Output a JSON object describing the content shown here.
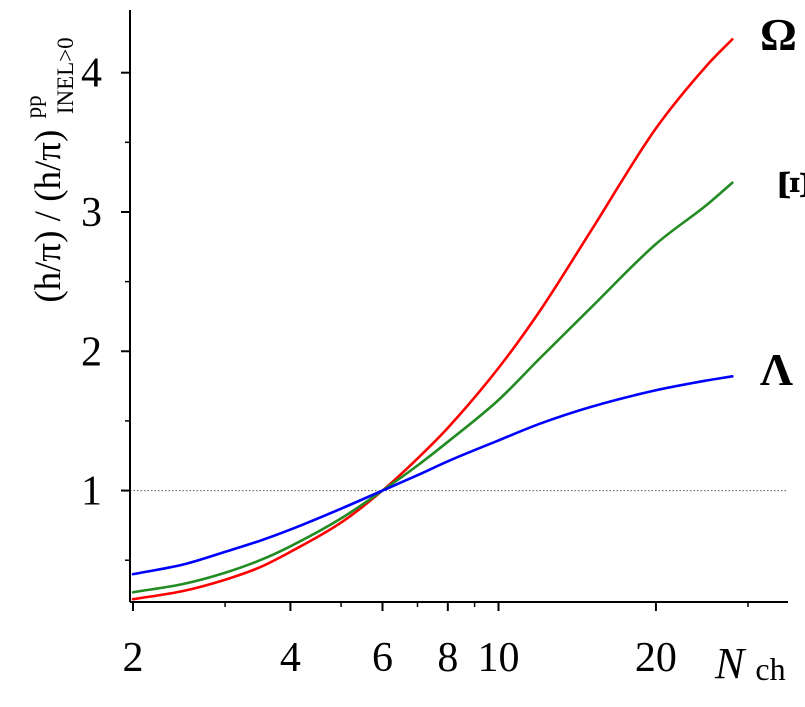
{
  "chart_data": {
    "type": "line",
    "x_scale": "log",
    "xlim": [
      2,
      30
    ],
    "ylim": [
      0.2,
      4.45
    ],
    "x_ticks": [
      {
        "value": 2,
        "label": "2"
      },
      {
        "value": 4,
        "label": "4"
      },
      {
        "value": 6,
        "label": "6"
      },
      {
        "value": 8,
        "label": "8"
      },
      {
        "value": 10,
        "label": "10"
      },
      {
        "value": 20,
        "label": "20"
      }
    ],
    "x_minor_ticks": [
      3,
      5,
      7,
      9,
      30
    ],
    "y_ticks": [
      {
        "value": 1,
        "label": "1"
      },
      {
        "value": 2,
        "label": "2"
      },
      {
        "value": 3,
        "label": "3"
      },
      {
        "value": 4,
        "label": "4"
      }
    ],
    "y_minor_ticks": [
      0.5,
      1.5,
      2.5,
      3.5
    ],
    "xlabel": {
      "main": "N",
      "sub": "ch"
    },
    "ylabel": {
      "main": "(h/π) / (h/π)",
      "sup": "pp",
      "sub": "INEL>0"
    },
    "reference_line": {
      "y": 1,
      "style": "dotted",
      "color": "#555555"
    },
    "grid": false,
    "legend": "none",
    "series": [
      {
        "name": "Ω",
        "color": "#ff0000",
        "x": [
          2,
          2.5,
          3,
          3.5,
          4,
          5,
          6,
          7,
          8,
          10,
          12,
          15,
          20,
          25,
          28
        ],
        "y": [
          0.22,
          0.28,
          0.36,
          0.45,
          0.56,
          0.77,
          1.0,
          1.23,
          1.45,
          1.88,
          2.29,
          2.86,
          3.6,
          4.05,
          4.24
        ]
      },
      {
        "name": "Ξ",
        "color": "#228b22",
        "x": [
          2,
          2.5,
          3,
          3.5,
          4,
          5,
          6,
          7,
          8,
          10,
          12,
          15,
          20,
          25,
          28
        ],
        "y": [
          0.27,
          0.33,
          0.41,
          0.5,
          0.6,
          0.8,
          1.0,
          1.18,
          1.35,
          1.65,
          1.95,
          2.31,
          2.77,
          3.05,
          3.21
        ]
      },
      {
        "name": "Λ",
        "color": "#0000ff",
        "x": [
          2,
          2.5,
          3,
          3.5,
          4,
          5,
          6,
          7,
          8,
          10,
          12,
          15,
          20,
          25,
          28
        ],
        "y": [
          0.4,
          0.47,
          0.56,
          0.64,
          0.72,
          0.87,
          1.0,
          1.11,
          1.21,
          1.36,
          1.48,
          1.6,
          1.72,
          1.79,
          1.82
        ]
      }
    ]
  }
}
